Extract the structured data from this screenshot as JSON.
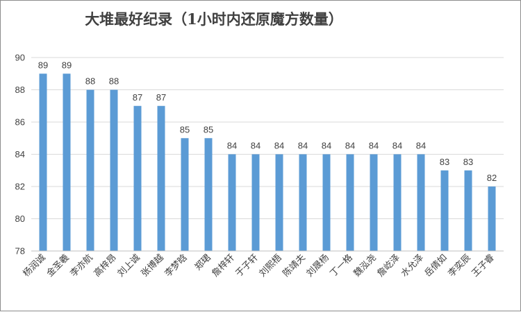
{
  "chart_data": {
    "type": "bar",
    "title": "大堆最好纪录（1小时内还原魔方数量）",
    "categories": [
      "杨润诚",
      "金圣羲",
      "李亦航",
      "高梓昂",
      "刘上诚",
      "张博越",
      "李梦晗",
      "郑珺",
      "詹梓轩",
      "于子轩",
      "刘熙梧",
      "陈靖夫",
      "刘晟杨",
      "丁一格",
      "魏泓尧",
      "詹屹泽",
      "水允泽",
      "岳倩如",
      "李奕辰",
      "王子睿"
    ],
    "values": [
      89,
      89,
      88,
      88,
      87,
      87,
      85,
      85,
      84,
      84,
      84,
      84,
      84,
      84,
      84,
      84,
      84,
      83,
      83,
      82
    ],
    "ylim": [
      78,
      90
    ],
    "yticks": [
      78,
      80,
      82,
      84,
      86,
      88,
      90
    ],
    "xlabel": "",
    "ylabel": "",
    "grid": true,
    "data_labels": true,
    "bar_color": "#5B9BD5",
    "grid_color": "#d9d9d9",
    "text_color": "#404040"
  }
}
